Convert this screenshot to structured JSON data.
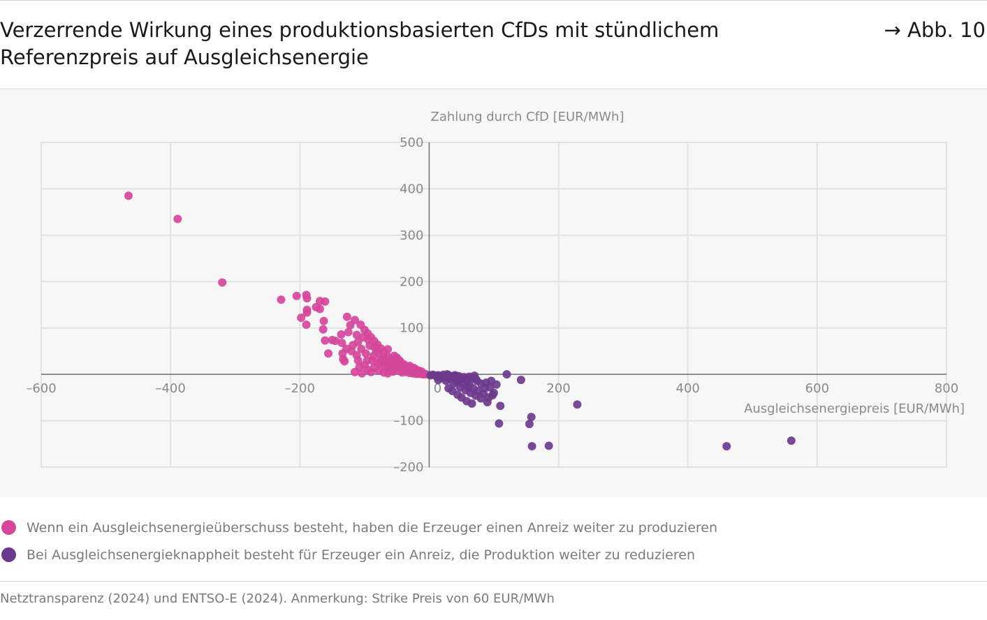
{
  "header": {
    "title": "Verzerrende Wirkung eines produktionsbasierten CfDs mit stündlichem Referenzpreis auf Ausgleichsenergie",
    "figure_ref": "→ Abb. 10"
  },
  "legend": {
    "items": [
      {
        "label": "Wenn ein Ausgleichsenergieüberschuss besteht, haben die Erzeuger einen Anreiz weiter zu produzieren",
        "color": "#d4479a"
      },
      {
        "label": "Bei Ausgleichsenergieknappheit besteht für Erzeuger ein Anreiz, die Produktion weiter zu reduzieren",
        "color": "#6c3a8c"
      }
    ]
  },
  "footer": {
    "source": "Netztransparenz (2024) und ENTSO-E (2024). Anmerkung: Strike Preis von 60 EUR/MWh"
  },
  "chart_data": {
    "type": "scatter",
    "xlabel": "Ausgleichsenergiepreis [EUR/MWh]",
    "ylabel": "Zahlung durch CfD [EUR/MWh]",
    "xlim": [
      -600,
      800
    ],
    "ylim": [
      -200,
      500
    ],
    "x_ticks": [
      -600,
      -400,
      -200,
      0,
      200,
      400,
      600,
      800
    ],
    "y_ticks": [
      -200,
      -100,
      100,
      200,
      300,
      400,
      500
    ],
    "x_tick_labels": [
      "–600",
      "–400",
      "–200",
      "0",
      "200",
      "400",
      "600",
      "800"
    ],
    "y_tick_labels": [
      "–200",
      "–100",
      "100",
      "200",
      "300",
      "400",
      "500"
    ],
    "grid": true,
    "series": [
      {
        "color": "#d4479a",
        "points": [
          [
            -465,
            385
          ],
          [
            -389,
            335
          ],
          [
            -320,
            198
          ],
          [
            -229,
            161
          ],
          [
            -205,
            169
          ],
          [
            -190,
            171
          ],
          [
            -189,
            164
          ],
          [
            -189,
            139
          ],
          [
            -189,
            133
          ],
          [
            -190,
            107
          ],
          [
            -198,
            122
          ],
          [
            -175,
            145
          ],
          [
            -169,
            141
          ],
          [
            -169,
            158
          ],
          [
            -161,
            157
          ],
          [
            -163,
            115
          ],
          [
            -164,
            97
          ],
          [
            -161,
            73
          ],
          [
            -150,
            74
          ],
          [
            -145,
            72
          ],
          [
            -156,
            45
          ],
          [
            -136,
            86
          ],
          [
            -135,
            68
          ],
          [
            -134,
            45
          ],
          [
            -133,
            33
          ],
          [
            -131,
            28
          ],
          [
            -127,
            124
          ],
          [
            -122,
            106
          ],
          [
            -115,
            117
          ],
          [
            -125,
            91
          ],
          [
            -118,
            63
          ],
          [
            -112,
            41
          ],
          [
            -106,
            107
          ],
          [
            -100,
            96
          ],
          [
            -95,
            88
          ],
          [
            -90,
            80
          ],
          [
            -85,
            72
          ],
          [
            -80,
            64
          ],
          [
            -75,
            56
          ],
          [
            -70,
            48
          ],
          [
            -65,
            40
          ],
          [
            -60,
            32
          ],
          [
            -55,
            26
          ],
          [
            -50,
            20
          ],
          [
            -45,
            14
          ],
          [
            -40,
            8
          ],
          [
            -35,
            5
          ],
          [
            -30,
            3
          ],
          [
            -25,
            2
          ],
          [
            -20,
            1
          ],
          [
            -15,
            1
          ],
          [
            -10,
            0
          ],
          [
            -5,
            0
          ],
          [
            -110,
            70
          ],
          [
            -105,
            55
          ],
          [
            -98,
            45
          ],
          [
            -92,
            62
          ],
          [
            -88,
            30
          ],
          [
            -82,
            50
          ],
          [
            -76,
            22
          ],
          [
            -72,
            36
          ],
          [
            -68,
            18
          ],
          [
            -62,
            12
          ],
          [
            -58,
            28
          ],
          [
            -52,
            8
          ],
          [
            -48,
            16
          ],
          [
            -42,
            4
          ],
          [
            -38,
            20
          ],
          [
            -32,
            10
          ],
          [
            -28,
            6
          ],
          [
            -22,
            12
          ],
          [
            -18,
            4
          ],
          [
            -12,
            6
          ],
          [
            -8,
            2
          ],
          [
            -100,
            20
          ],
          [
            -95,
            10
          ],
          [
            -90,
            5
          ],
          [
            -85,
            15
          ],
          [
            -78,
            8
          ],
          [
            -70,
            4
          ],
          [
            -64,
            2
          ],
          [
            -56,
            6
          ],
          [
            -110,
            30
          ],
          [
            -115,
            5
          ],
          [
            -104,
            2
          ],
          [
            -96,
            30
          ],
          [
            -86,
            40
          ],
          [
            -80,
            25
          ],
          [
            -74,
            32
          ],
          [
            -66,
            24
          ],
          [
            -60,
            14
          ],
          [
            -54,
            40
          ],
          [
            -46,
            30
          ],
          [
            -40,
            22
          ],
          [
            -34,
            16
          ],
          [
            -26,
            9
          ],
          [
            -120,
            50
          ],
          [
            -112,
            85
          ],
          [
            -102,
            80
          ],
          [
            -94,
            74
          ],
          [
            -84,
            58
          ],
          [
            -78,
            44
          ],
          [
            -70,
            30
          ],
          [
            -64,
            54
          ],
          [
            -56,
            18
          ],
          [
            -50,
            36
          ],
          [
            -44,
            26
          ],
          [
            -36,
            12
          ],
          [
            -30,
            18
          ],
          [
            -24,
            14
          ],
          [
            -16,
            8
          ],
          [
            -128,
            55
          ],
          [
            -108,
            15
          ]
        ]
      },
      {
        "color": "#6c3a8c",
        "points": [
          [
            2,
            -2
          ],
          [
            6,
            -1
          ],
          [
            10,
            -3
          ],
          [
            14,
            -2
          ],
          [
            18,
            -4
          ],
          [
            22,
            -1
          ],
          [
            26,
            -5
          ],
          [
            30,
            -2
          ],
          [
            34,
            -6
          ],
          [
            38,
            -3
          ],
          [
            42,
            -8
          ],
          [
            46,
            -4
          ],
          [
            50,
            -10
          ],
          [
            54,
            -6
          ],
          [
            58,
            -12
          ],
          [
            62,
            -5
          ],
          [
            66,
            -8
          ],
          [
            70,
            -3
          ],
          [
            14,
            -12
          ],
          [
            20,
            -8
          ],
          [
            26,
            -14
          ],
          [
            32,
            -10
          ],
          [
            38,
            -20
          ],
          [
            42,
            -16
          ],
          [
            48,
            -28
          ],
          [
            52,
            -18
          ],
          [
            56,
            -34
          ],
          [
            60,
            -26
          ],
          [
            64,
            -40
          ],
          [
            68,
            -30
          ],
          [
            72,
            -46
          ],
          [
            76,
            -36
          ],
          [
            80,
            -20
          ],
          [
            84,
            -42
          ],
          [
            88,
            -18
          ],
          [
            92,
            -50
          ],
          [
            96,
            -14
          ],
          [
            100,
            -40
          ],
          [
            104,
            -22
          ],
          [
            30,
            -30
          ],
          [
            36,
            -36
          ],
          [
            44,
            -44
          ],
          [
            50,
            -50
          ],
          [
            58,
            -58
          ],
          [
            66,
            -63
          ],
          [
            90,
            -60
          ],
          [
            98,
            -45
          ],
          [
            110,
            -68
          ],
          [
            108,
            -106
          ],
          [
            120,
            0
          ],
          [
            142,
            -12
          ],
          [
            155,
            -107
          ],
          [
            158,
            -92
          ],
          [
            159,
            -155
          ],
          [
            185,
            -154
          ],
          [
            229,
            -65
          ],
          [
            460,
            -155
          ],
          [
            560,
            -143
          ],
          [
            40,
            -2
          ],
          [
            44,
            -12
          ],
          [
            72,
            -10
          ],
          [
            28,
            0
          ],
          [
            16,
            -6
          ],
          [
            62,
            -22
          ],
          [
            74,
            -14
          ],
          [
            80,
            -52
          ],
          [
            86,
            -30
          ],
          [
            94,
            -28
          ]
        ]
      }
    ]
  }
}
